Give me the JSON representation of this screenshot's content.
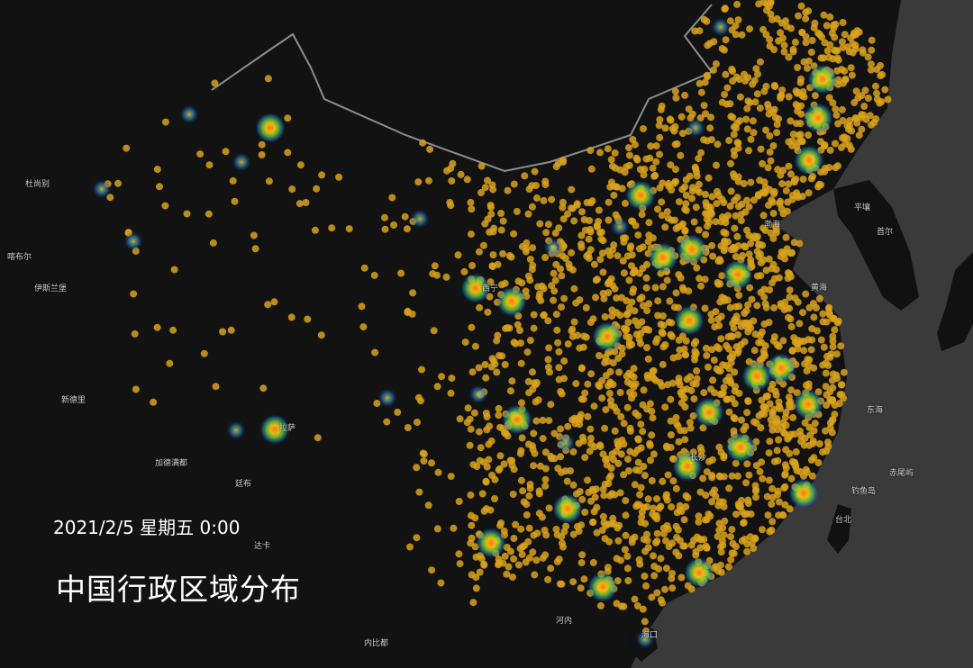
{
  "title": "中国行政区域分布",
  "datetime": "2021/2/5 星期五 0:00",
  "colors": {
    "background_land": "#121212",
    "sea": "#3a3a3a",
    "border": "#9a9a9a",
    "dot": "#d9a21c",
    "heat_low": "#1e6fb4",
    "heat_mid": "#7ccf2a",
    "heat_high": "#ff8a00"
  },
  "map_labels": [
    "渤海",
    "黄海",
    "东海",
    "平壤",
    "首尔",
    "台北",
    "钓鱼岛",
    "赤尾屿",
    "海口",
    "河内",
    "内比都",
    "达卡",
    "廷布",
    "加德满都",
    "新德里",
    "伊斯兰堡",
    "喀布尔",
    "杜尚别",
    "拉萨",
    "西宁",
    "长沙"
  ]
}
